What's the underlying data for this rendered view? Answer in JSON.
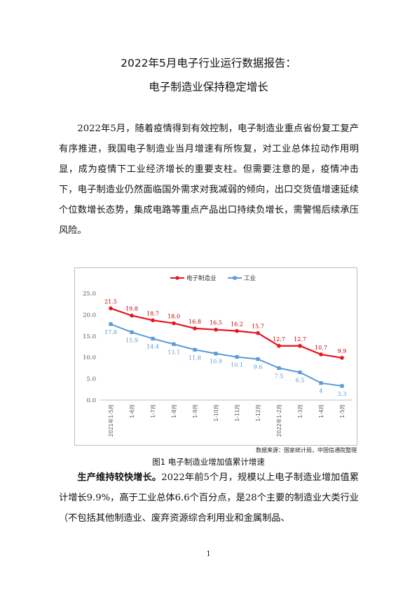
{
  "title_line1": "2022年5月电子行业运行数据报告：",
  "title_line2": "电子制造业保持稳定增长",
  "intro_paragraph": "2022年5月，随着疫情得到有效控制，电子制造业重点省份复工复产有序推进，我国电子制造业当月增速有所恢复，对工业总体拉动作用明显，成为疫情下工业经济增长的重要支柱。但需要注意的是，疫情冲击下，电子制造业仍然面临国外需求对我减弱的倾向，出口交货值增速延续个位数增长态势，集成电路等重点产品出口持续负增长，需警惕后续承压风险。",
  "section": {
    "lead": "生产维持较快增长。",
    "text": "2022年前5个月，规模以上电子制造业增加值累计增长9.9%，高于工业总体6.6个百分点，是28个主要的制造业大类行业（不包括其他制造业、废弃资源综合利用业和金属制品、"
  },
  "chart_data": {
    "type": "line",
    "categories": [
      "2021年1-5月",
      "1-6月",
      "1-7月",
      "1-8月",
      "1-9月",
      "1-10月",
      "1-11月",
      "1-12月",
      "2022年1-2月",
      "1-3月",
      "1-4月",
      "1-5月"
    ],
    "series": [
      {
        "name": "电子制造业",
        "color": "#e8141e",
        "values": [
          21.5,
          19.8,
          18.7,
          18.0,
          16.8,
          16.5,
          16.2,
          15.7,
          12.7,
          12.7,
          10.7,
          9.9
        ],
        "labels": [
          "21.5",
          "19.8",
          "18.7",
          "18.0",
          "16.8",
          "16.5",
          "16.2",
          "15.7",
          "12.7",
          "12.7",
          "10.7",
          "9.9"
        ]
      },
      {
        "name": "工业",
        "color": "#5b9bd5",
        "values": [
          17.8,
          15.9,
          14.4,
          13.1,
          11.8,
          10.9,
          10.1,
          9.6,
          7.5,
          6.5,
          4.0,
          3.3
        ],
        "labels": [
          "17.8",
          "15.9",
          "14.4",
          "13.1",
          "11.8",
          "10.9",
          "10.1",
          "9.6",
          "7.5",
          "6.5",
          "4",
          "3.3"
        ]
      }
    ],
    "yticks": [
      "25.0",
      "20.0",
      "15.0",
      "10.0",
      "5.0",
      "0.0"
    ],
    "ylim": [
      0,
      25
    ],
    "legend": "top",
    "grid": false
  },
  "source_note": "数据来源：国家统计局，中国信通院整理",
  "caption": "图1 电子制造业增加值累计增速",
  "page_number": "1"
}
